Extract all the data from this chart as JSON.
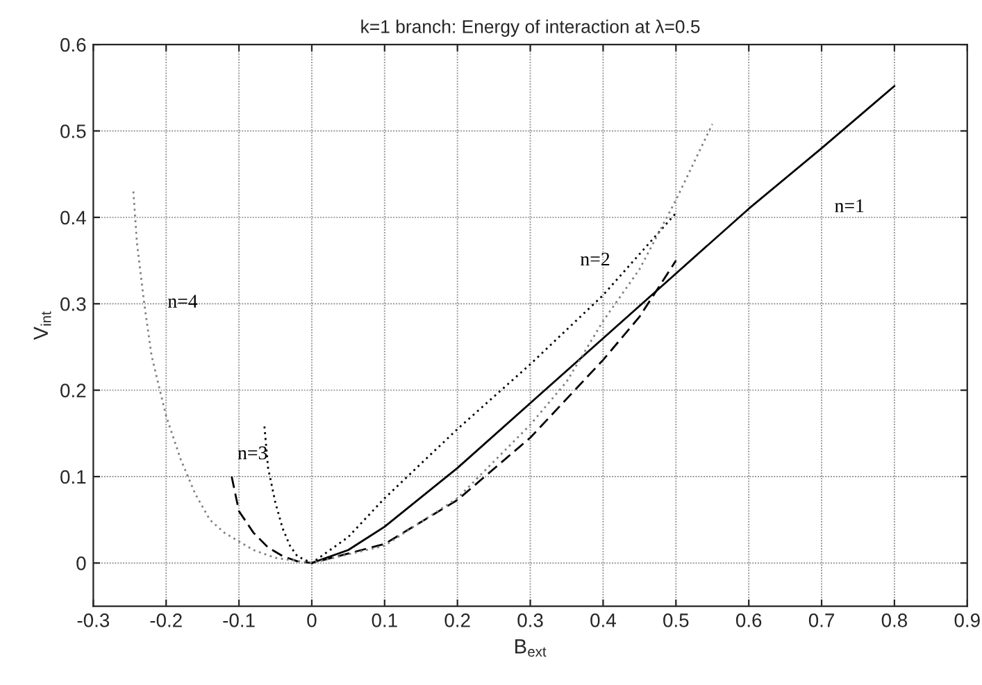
{
  "chart_data": {
    "type": "line",
    "title": "k=1 branch: Energy of interaction at λ=0.5",
    "xlabel": "B$_{ext}$",
    "ylabel": "V$_{int}$",
    "xlim": [
      -0.3,
      0.9
    ],
    "ylim": [
      -0.05,
      0.6
    ],
    "xticks": [
      -0.3,
      -0.2,
      -0.1,
      0,
      0.1,
      0.2,
      0.3,
      0.4,
      0.5,
      0.6,
      0.7,
      0.8,
      0.9
    ],
    "yticks": [
      0,
      0.1,
      0.2,
      0.3,
      0.4,
      0.5,
      0.6
    ],
    "grid": true,
    "legend": false,
    "series": [
      {
        "name": "n=1",
        "color": "#000000",
        "line_style": "solid",
        "x": [
          0,
          0.05,
          0.1,
          0.2,
          0.3,
          0.4,
          0.5,
          0.6,
          0.7,
          0.8
        ],
        "values": [
          0,
          0.015,
          0.042,
          0.11,
          0.185,
          0.26,
          0.335,
          0.41,
          0.48,
          0.552
        ]
      },
      {
        "name": "n=2",
        "color": "#000000",
        "line_style": "dotted",
        "x": [
          -0.065,
          -0.06,
          -0.05,
          -0.04,
          -0.03,
          -0.02,
          0,
          0.05,
          0.1,
          0.2,
          0.3,
          0.4,
          0.5
        ],
        "values": [
          0.158,
          0.11,
          0.07,
          0.04,
          0.02,
          0.008,
          0,
          0.03,
          0.075,
          0.155,
          0.23,
          0.31,
          0.405
        ]
      },
      {
        "name": "n=3",
        "color": "#000000",
        "line_style": "dashed",
        "x": [
          -0.11,
          -0.1,
          -0.08,
          -0.06,
          -0.04,
          -0.02,
          0,
          0.1,
          0.2,
          0.3,
          0.4,
          0.45,
          0.5
        ],
        "values": [
          0.1,
          0.06,
          0.035,
          0.018,
          0.008,
          0.002,
          0,
          0.022,
          0.073,
          0.145,
          0.235,
          0.285,
          0.35
        ]
      },
      {
        "name": "n=4",
        "color": "#808080",
        "line_style": "dotted",
        "x": [
          -0.245,
          -0.24,
          -0.23,
          -0.22,
          -0.2,
          -0.18,
          -0.16,
          -0.14,
          -0.12,
          -0.1,
          -0.08,
          -0.05,
          0,
          0.1,
          0.2,
          0.3,
          0.35,
          0.4,
          0.45,
          0.5,
          0.55
        ],
        "values": [
          0.43,
          0.37,
          0.3,
          0.24,
          0.17,
          0.12,
          0.08,
          0.05,
          0.035,
          0.025,
          0.015,
          0.006,
          0,
          0.02,
          0.075,
          0.16,
          0.21,
          0.28,
          0.34,
          0.42,
          0.508
        ]
      }
    ]
  }
}
